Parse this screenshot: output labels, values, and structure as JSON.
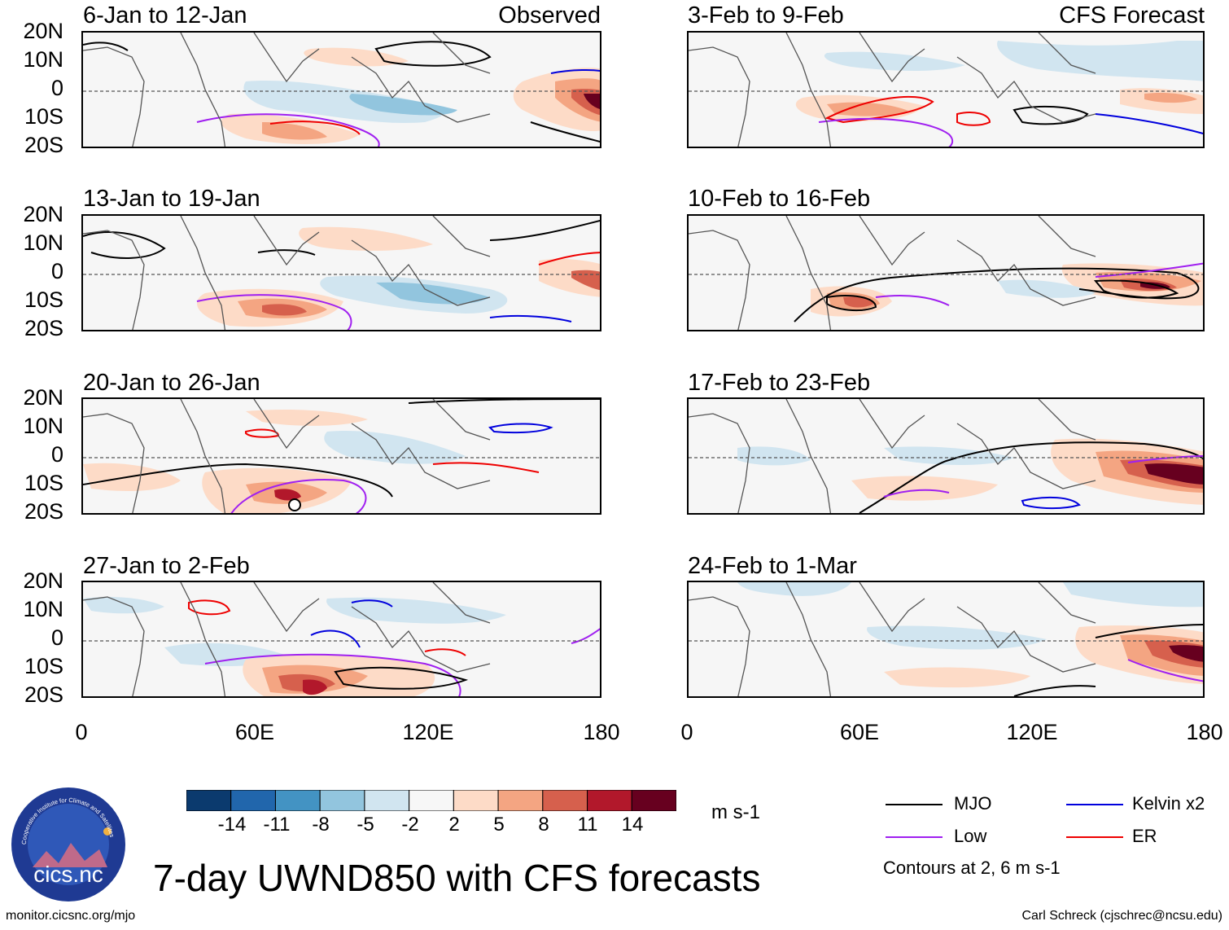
{
  "figure_title": "7-day UWND850 with CFS forecasts",
  "observed_label": "Observed",
  "forecast_label": "CFS Forecast",
  "panels_left": [
    "6-Jan to 12-Jan",
    "13-Jan to 19-Jan",
    "20-Jan to 26-Jan",
    "27-Jan to 2-Feb"
  ],
  "panels_right": [
    "3-Feb to 9-Feb",
    "10-Feb to 16-Feb",
    "17-Feb to 23-Feb",
    "24-Feb to 1-Mar"
  ],
  "lat_labels": [
    "20N",
    "10N",
    "0",
    "10S",
    "20S"
  ],
  "lon_labels": [
    "0",
    "60E",
    "120E",
    "180"
  ],
  "colorbar": {
    "unit": "m s-1",
    "ticks": [
      "-14",
      "-11",
      "-8",
      "-5",
      "-2",
      "2",
      "5",
      "8",
      "11",
      "14"
    ],
    "colors": [
      "#0b3a6e",
      "#2166ac",
      "#4393c3",
      "#92c5de",
      "#d1e5f0",
      "#f7f7f7",
      "#fddbc7",
      "#f4a582",
      "#d6604d",
      "#b2182b",
      "#67001f"
    ]
  },
  "legend": {
    "items": [
      {
        "label": "MJO",
        "color": "#000000"
      },
      {
        "label": "Kelvin x2",
        "color": "#0000dd"
      },
      {
        "label": "Low",
        "color": "#a020f0"
      },
      {
        "label": "ER",
        "color": "#ee0000"
      }
    ],
    "note": "Contours at 2, 6 m s-1"
  },
  "logo_text": "cics.nc",
  "logo_ring_text": "Cooperative Institute for Climate and Satellites",
  "website": "monitor.cicsnc.org/mjo",
  "credit": "Carl Schreck (cjschrec@ncsu.edu)"
}
